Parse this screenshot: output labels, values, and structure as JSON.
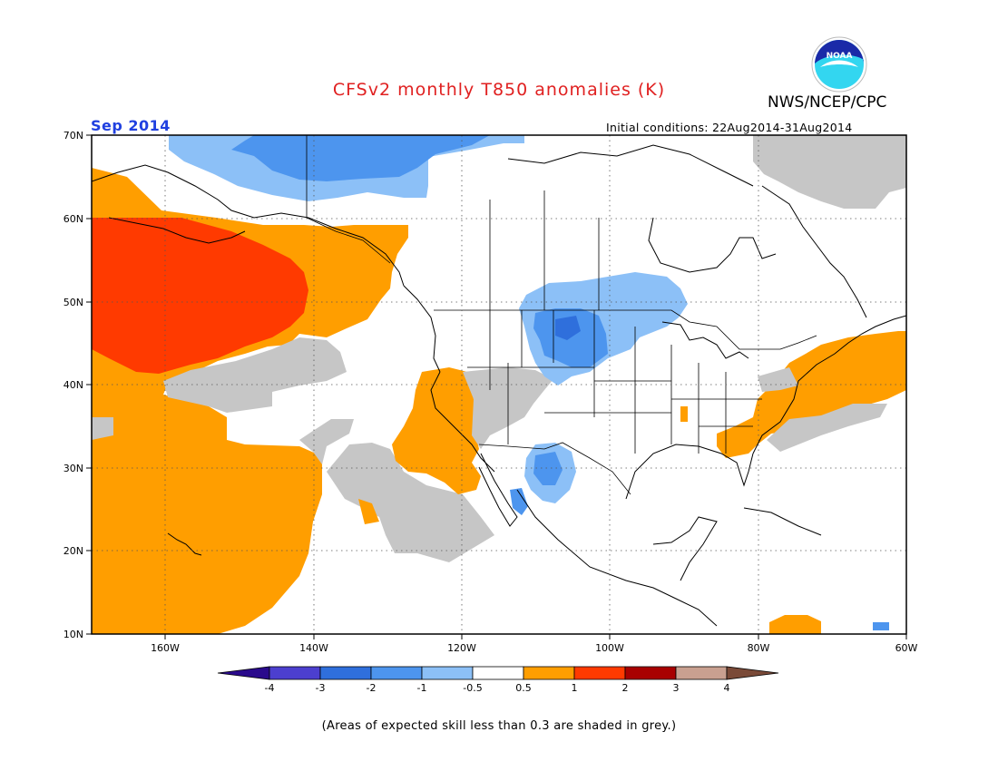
{
  "header": {
    "title": "CFSv2 monthly T850 anomalies (K)",
    "agency": "NWS/NCEP/CPC",
    "month": "Sep 2014",
    "initial_conditions": "Initial conditions: 22Aug2014-31Aug2014",
    "logo_text": "NOAA"
  },
  "map": {
    "lat_labels": [
      "70N",
      "60N",
      "50N",
      "40N",
      "30N",
      "20N",
      "10N"
    ],
    "lon_labels": [
      "160W",
      "140W",
      "120W",
      "100W",
      "80W",
      "60W"
    ],
    "lat_range": [
      10,
      70
    ],
    "lon_range": [
      -170,
      -60
    ],
    "grid": "dotted"
  },
  "colorbar": {
    "labels": [
      "-4",
      "-3",
      "-2",
      "-1",
      "-0.5",
      "0.5",
      "1",
      "2",
      "3",
      "4"
    ],
    "colors": [
      "#2a0a8c",
      "#4c3fcf",
      "#2f6fdc",
      "#4d95ee",
      "#8cc0f7",
      "#ffffff",
      "#ff9e00",
      "#ff3a00",
      "#a80000",
      "#c9a090",
      "#7a4a38"
    ]
  },
  "colors": {
    "grey_skill": "#c6c6c6",
    "light_blue": "#8cc0f7",
    "mid_blue": "#4d95ee",
    "dark_blue": "#2f6fdc",
    "orange": "#ff9e00",
    "red_orange": "#ff3a00"
  },
  "footnote": "(Areas of expected skill less than 0.3 are shaded in grey.)"
}
